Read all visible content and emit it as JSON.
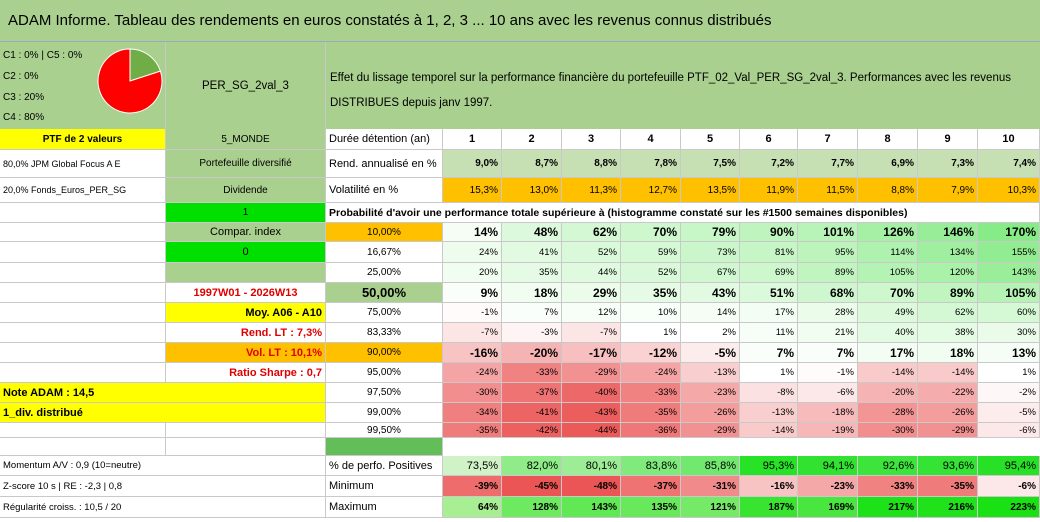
{
  "title": "ADAM Informe. Tableau des rendements en euros constatés à 1, 2, 3 ... 10 ans avec les revenus connus distribués",
  "composition": {
    "lines": [
      "C1 : 0% | C5 : 0%",
      "C2 : 0%",
      "C3 : 20%",
      "C4 : 80%"
    ],
    "pie": [
      {
        "label": "C3",
        "value": 20,
        "color": "#70ad47"
      },
      {
        "label": "C4",
        "value": 80,
        "color": "#ff0000"
      }
    ]
  },
  "portfolio_name": "PER_SG_2val_3",
  "description": "Effet du lissage temporel sur la performance financière du portefeuille PTF_02_Val_PER_SG_2val_3. Performances avec les revenus DISTRIBUES depuis janv 1997.",
  "left_panel": {
    "ptf_label": "PTF de 2 valeurs",
    "zone": "5_MONDE",
    "holding1": "80,0% JPM Global Focus A E",
    "holding2": "20,0% Fonds_Euros_PER_SG",
    "type": "Portefeuille diversifié",
    "dividend": "Dividende",
    "one": "1",
    "compar_index": "Compar. index",
    "zero": "0",
    "period": "1997W01 - 2026W13",
    "moy": "Moy. A06 - A10",
    "rend_lt": "Rend. LT : 7,3%",
    "vol_lt": "Vol. LT : 10,1%",
    "sharpe": "Ratio Sharpe : 0,7",
    "note": "Note ADAM : 14,5",
    "div_type": "1_div. distribué",
    "momentum": "Momentum A/V : 0,9 (10=neutre)",
    "zscore": "Z-score 10 s | RE : -2,3 | 0,8",
    "regularite": "Régularité croiss. : 10,5 / 20"
  },
  "table": {
    "duration_label": "Durée détention (an)",
    "years": [
      "1",
      "2",
      "3",
      "4",
      "5",
      "6",
      "7",
      "8",
      "9",
      "10"
    ],
    "rend_label": "Rend. annualisé en %",
    "rend": [
      "9,0%",
      "8,7%",
      "8,8%",
      "7,8%",
      "7,5%",
      "7,2%",
      "7,7%",
      "6,9%",
      "7,3%",
      "7,4%"
    ],
    "vol_label": "Volatilité en %",
    "vol": [
      "15,3%",
      "13,0%",
      "11,3%",
      "12,7%",
      "13,5%",
      "11,9%",
      "11,5%",
      "8,8%",
      "7,9%",
      "10,3%"
    ],
    "prob_label": "Probabilité d'avoir une performance totale supérieure à (histogramme constaté sur les #1500 semaines disponibles)",
    "quantile_rows": [
      {
        "q": "10,00%",
        "v": [
          "14%",
          "48%",
          "62%",
          "70%",
          "79%",
          "90%",
          "101%",
          "126%",
          "146%",
          "170%"
        ],
        "emph": true
      },
      {
        "q": "16,67%",
        "v": [
          "24%",
          "41%",
          "52%",
          "59%",
          "73%",
          "81%",
          "95%",
          "114%",
          "134%",
          "155%"
        ],
        "emph": false
      },
      {
        "q": "25,00%",
        "v": [
          "20%",
          "35%",
          "44%",
          "52%",
          "67%",
          "69%",
          "89%",
          "105%",
          "120%",
          "143%"
        ],
        "emph": false
      },
      {
        "q": "50,00%",
        "v": [
          "9%",
          "18%",
          "29%",
          "35%",
          "43%",
          "51%",
          "68%",
          "70%",
          "89%",
          "105%"
        ],
        "emph": true
      },
      {
        "q": "75,00%",
        "v": [
          "-1%",
          "7%",
          "12%",
          "10%",
          "14%",
          "17%",
          "28%",
          "49%",
          "62%",
          "60%"
        ],
        "emph": false
      },
      {
        "q": "83,33%",
        "v": [
          "-7%",
          "-3%",
          "-7%",
          "1%",
          "2%",
          "11%",
          "21%",
          "40%",
          "38%",
          "30%"
        ],
        "emph": false
      },
      {
        "q": "90,00%",
        "v": [
          "-16%",
          "-20%",
          "-17%",
          "-12%",
          "-5%",
          "7%",
          "7%",
          "17%",
          "18%",
          "13%"
        ],
        "emph": true
      },
      {
        "q": "95,00%",
        "v": [
          "-24%",
          "-33%",
          "-29%",
          "-24%",
          "-13%",
          "1%",
          "-1%",
          "-14%",
          "-14%",
          "1%"
        ],
        "emph": false
      },
      {
        "q": "97,50%",
        "v": [
          "-30%",
          "-37%",
          "-40%",
          "-33%",
          "-23%",
          "-8%",
          "-6%",
          "-20%",
          "-22%",
          "-2%"
        ],
        "emph": false
      },
      {
        "q": "99,00%",
        "v": [
          "-34%",
          "-41%",
          "-43%",
          "-35%",
          "-26%",
          "-13%",
          "-18%",
          "-28%",
          "-26%",
          "-5%"
        ],
        "emph": false
      },
      {
        "q": "99,50%",
        "v": [
          "-35%",
          "-42%",
          "-44%",
          "-36%",
          "-29%",
          "-14%",
          "-19%",
          "-30%",
          "-29%",
          "-6%"
        ],
        "emph": false
      }
    ],
    "pos_label": "% de perfo. Positives",
    "pos": [
      "73,5%",
      "82,0%",
      "80,1%",
      "83,8%",
      "85,8%",
      "95,3%",
      "94,1%",
      "92,6%",
      "93,6%",
      "95,4%"
    ],
    "min_label": "Minimum",
    "min": [
      "-39%",
      "-45%",
      "-48%",
      "-37%",
      "-31%",
      "-16%",
      "-23%",
      "-33%",
      "-35%",
      "-6%"
    ],
    "max_label": "Maximum",
    "max": [
      "64%",
      "128%",
      "143%",
      "135%",
      "121%",
      "187%",
      "169%",
      "217%",
      "216%",
      "223%"
    ]
  },
  "colors": {
    "header_green": "#a9d08e",
    "light_green": "#c6e0b4",
    "bright_green": "#00e000",
    "yellow": "#ffff00",
    "orange": "#ffc000",
    "label_red": "#e00000"
  }
}
